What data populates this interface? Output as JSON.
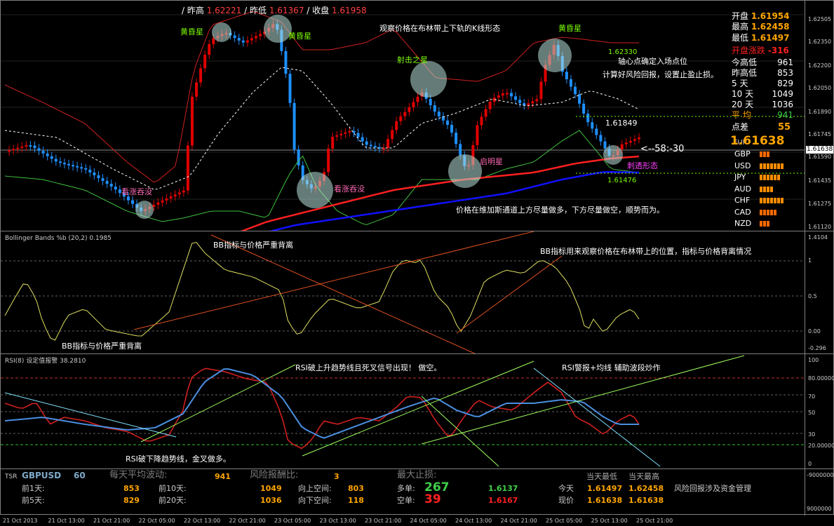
{
  "header": {
    "prev_high_label": "/ 昨高",
    "prev_high": "1.62221",
    "prev_low_label": "/ 昨低",
    "prev_low": "1.61367",
    "close_label": "/ 收盘",
    "close": "1.61958"
  },
  "info_panel": {
    "open_label": "开盘",
    "open": "1.61954",
    "high_label": "最高",
    "high": "1.62458",
    "low_label": "最低",
    "low": "1.61497",
    "change_label": "开盘涨跌",
    "change": "-316",
    "ranges": [
      {
        "label": "今高低",
        "value": "961"
      },
      {
        "label": "昨高低",
        "value": "853"
      },
      {
        "label": "5   天",
        "value": "829"
      },
      {
        "label": "10  天",
        "value": "1049"
      },
      {
        "label": "20  天",
        "value": "1036"
      },
      {
        "label": "平  均",
        "value": "941"
      }
    ],
    "spread_label": "点差",
    "spread": "55",
    "big_price": "1.61638",
    "currency_prefix": "EUR",
    "currencies": [
      {
        "label": "GBP",
        "bars": 3,
        "color": "#ff6a00"
      },
      {
        "label": "USD",
        "bars": 7,
        "color": "#ff8c00"
      },
      {
        "label": "JPY",
        "bars": 6,
        "color": "#ff8c00"
      },
      {
        "label": "AUD",
        "bars": 4,
        "color": "#ff8c00"
      },
      {
        "label": "CHF",
        "bars": 7,
        "color": "#ff8c00"
      },
      {
        "label": "CAD",
        "bars": 5,
        "color": "#ff6a00"
      },
      {
        "label": "NZD",
        "bars": 3,
        "color": "#ff6a00"
      }
    ]
  },
  "main_annotations": {
    "pivot_note": "轴心点确定入场点位",
    "risk_note": "计算好风险回报，设置止盈止损。",
    "kline_note": "观察价格在布林带上下轨的K线形态",
    "evening_star_1": "黄昏星",
    "evening_star_2": "黄昏星",
    "evening_star_3": "黄昏星",
    "shooting_star": "射击之星",
    "morning_star": "启明星",
    "bull_engulf_1": "看涨吞没",
    "bull_engulf_2": "看涨吞没",
    "piercing": "刺透形态",
    "vegas_note": "价格在维加斯通道上方尽量做多，下方尽量做空，顺势而为。",
    "price_label_high": "1.61849",
    "price_label_low": "1.61476",
    "price_label_bb": "1.62330",
    "countdown": "<--58:-30"
  },
  "main_axis": {
    "ticks": [
      "1.62505",
      "1.62350",
      "1.62200",
      "1.62050",
      "1.61890",
      "1.61745",
      "1.61590",
      "1.61435",
      "1.61275",
      "1.61120"
    ],
    "current_price": "1.61638"
  },
  "bb_pane": {
    "title": "Bollinger Bands %b (20,2) 0.1985",
    "note_top": "BB指标与价格严重背离",
    "note_bottom": "BB指标与价格严重背离",
    "note_right": "BB指标用来观察价格在布林带上的位置，指标与价格背离情况",
    "ticks": [
      "1.4104",
      "1",
      "0.5",
      "0.00",
      "-0.296"
    ]
  },
  "rsi_pane": {
    "title": "RSI(8) 设定值报警 38.2810",
    "note_top": "RSI破上升趋势线且死叉信号出现！ 做空。",
    "note_right": "RSI警报+均线 辅助波段炒作",
    "note_bottom": "RSI破下降趋势线，金叉做多。",
    "ticks": [
      "100",
      "80.00000",
      "70",
      "50",
      "30",
      "20.00000",
      "0"
    ]
  },
  "tsr_pane": {
    "prefix": "TSR",
    "symbol": "GBPUSD",
    "period": "60",
    "daily_vol_label": "每天平均波动:",
    "daily_vol": "941",
    "rr_label": "风险报酬比:",
    "rr": "3",
    "max_sl_label": "最大止损:",
    "d1_label": "前1天:",
    "d1": "853",
    "d10_label": "前10天:",
    "d10": "1049",
    "d5_label": "前5天:",
    "d5": "829",
    "d20_label": "前20天:",
    "d20": "1036",
    "up_space_label": "向上空间:",
    "up_space": "803",
    "down_space_label": "向下空间:",
    "down_space": "118",
    "long_label": "多单:",
    "long": "267",
    "long_price": "1.6137",
    "short_label": "空单:",
    "short": "39",
    "short_price": "1.6167",
    "day_low_label": "当天最低",
    "day_high_label": "当天最高",
    "today_label": "今天",
    "today_low": "1.61497",
    "today_high": "1.62458",
    "now_label": "现价",
    "now_low": "1.61638",
    "now_high": "1.61638",
    "note": "风险回报涉及资金管理",
    "ticks": [
      "-9000000",
      "9000000"
    ]
  },
  "time_axis": [
    "21 Oct 2013",
    "21 Oct 13:00",
    "21 Oct 21:00",
    "22 Oct 05:00",
    "22 Oct 13:00",
    "22 Oct 21:00",
    "23 Oct 05:00",
    "23 Oct 13:00",
    "23 Oct 21:00",
    "24 Oct 05:00",
    "24 Oct 13:00",
    "24 Oct 21:00",
    "25 Oct 05:00",
    "25 Oct 13:00",
    "25 Oct 21:00"
  ],
  "chart_data": {
    "type": "line",
    "symbol": "GBPUSD",
    "series": [
      {
        "name": "Bollinger Bands %b (20,2)",
        "last": 0.1985
      },
      {
        "name": "RSI(8)",
        "last": 38.281
      }
    ],
    "price_ylim": [
      1.6112,
      1.6255
    ],
    "bb_ylim": [
      -0.296,
      1.4104
    ],
    "rsi_ylim": [
      0,
      100
    ],
    "rsi_levels": [
      20,
      80
    ]
  },
  "colors": {
    "bull": "#e00000",
    "bear": "#1e90ff",
    "bb_band": "#d02020",
    "bb_mid": "#ffffff",
    "ema_fast": "#ff2020",
    "ema_slow": "#1010ff",
    "grid": "#606060"
  }
}
